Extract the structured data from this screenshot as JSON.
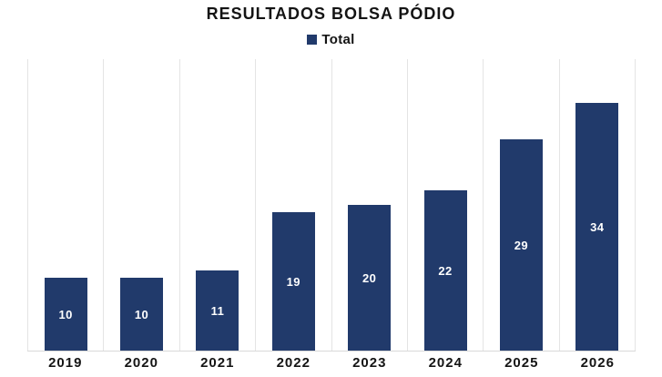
{
  "title": "RESULTADOS BOLSA PÓDIO",
  "legend": {
    "label": "Total"
  },
  "colors": {
    "bar": "#213A6B",
    "gridline": "#E4E4E4",
    "axis_line": "#D9D9D9",
    "text": "#141414",
    "value_label": "#FFFFFF",
    "background": "#FFFFFF"
  },
  "chart_data": {
    "type": "bar",
    "title": "RESULTADOS BOLSA PÓDIO",
    "categories": [
      "2019",
      "2020",
      "2021",
      "2022",
      "2023",
      "2024",
      "2025",
      "2026"
    ],
    "series": [
      {
        "name": "Total",
        "values": [
          10,
          10,
          11,
          19,
          20,
          22,
          29,
          34
        ]
      }
    ],
    "xlabel": "",
    "ylabel": "",
    "ylim": [
      0,
      40
    ],
    "grid": "vertical-only",
    "legend_position": "top-center",
    "value_labels": "inside-center"
  }
}
